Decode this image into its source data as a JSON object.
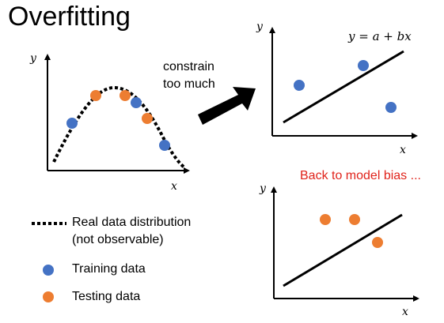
{
  "title": "Overfitting",
  "arrow_label": {
    "line1": "constrain",
    "line2": "too much"
  },
  "model_bias_note": "Back to model bias ...",
  "left_plot": {
    "x_axis_label": "x",
    "y_axis_label": "y"
  },
  "top_right_plot": {
    "x_axis_label": "x",
    "y_axis_label": "y",
    "equation": "y = a + bx"
  },
  "bottom_right_plot": {
    "x_axis_label": "x",
    "y_axis_label": "y"
  },
  "legend": {
    "real_line1": "Real data distribution",
    "real_line2": "(not observable)",
    "training": "Training data",
    "testing": "Testing data"
  },
  "colors": {
    "training": "#4472c4",
    "testing": "#ed7d31",
    "note": "#e0231b"
  }
}
